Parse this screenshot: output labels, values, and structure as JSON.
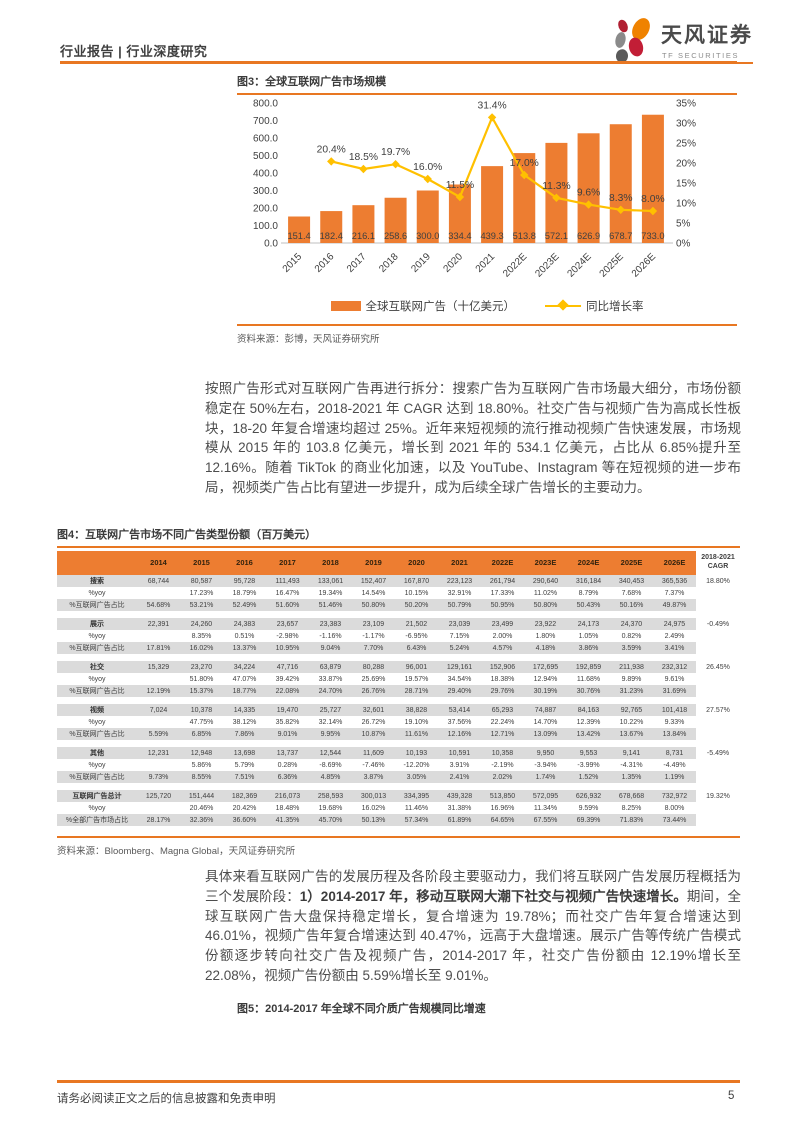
{
  "colors": {
    "accent": "#E87722",
    "bar": "#ED7D31",
    "line": "#FFC000",
    "table_header_bg": "#ED7D31",
    "row_shade": "#DBDBDB"
  },
  "header": {
    "breadcrumb": "行业报告 | 行业深度研究",
    "brand_cn": "天风证券",
    "brand_en": "TF SECURITIES"
  },
  "figure3": {
    "caption": "图3：全球互联网广告市场规模",
    "source": "资料来源：彭博，天风证券研究所"
  },
  "chart_data": {
    "type": "bar+line",
    "title": "全球互联网广告市场规模",
    "categories": [
      "2015",
      "2016",
      "2017",
      "2018",
      "2019",
      "2020",
      "2021",
      "2022E",
      "2023E",
      "2024E",
      "2025E",
      "2026E"
    ],
    "series": [
      {
        "name": "全球互联网广告（十亿美元）",
        "type": "bar",
        "axis": "left",
        "color": "#ED7D31",
        "values": [
          151.4,
          182.4,
          216.1,
          258.6,
          300.0,
          334.4,
          439.3,
          513.8,
          572.1,
          626.9,
          678.7,
          733.0
        ]
      },
      {
        "name": "同比增长率",
        "type": "line",
        "axis": "right",
        "color": "#FFC000",
        "values": [
          null,
          20.4,
          18.5,
          19.7,
          16.0,
          11.5,
          31.4,
          17.0,
          11.3,
          9.6,
          8.3,
          8.0
        ]
      }
    ],
    "left_axis": {
      "min": 0,
      "max": 800,
      "step": 100,
      "labels": [
        "0.0",
        "100.0",
        "200.0",
        "300.0",
        "400.0",
        "500.0",
        "600.0",
        "700.0",
        "800.0"
      ]
    },
    "right_axis": {
      "min": 0,
      "max": 35,
      "step": 5,
      "labels": [
        "0%",
        "5%",
        "10%",
        "15%",
        "20%",
        "25%",
        "30%",
        "35%"
      ]
    },
    "grid": false,
    "legend_position": "bottom"
  },
  "paragraph1": "按照广告形式对互联网广告再进行拆分：搜索广告为互联网广告市场最大细分，市场份额稳定在 50%左右，2018-2021 年 CAGR 达到 18.80%。社交广告与视频广告为高成长性板块，18-20 年复合增速均超过 25%。近年来短视频的流行推动视频广告快速发展，市场规模从 2015 年的 103.8 亿美元，增长到 2021 年的 534.1 亿美元，占比从 6.85%提升至 12.16%。随着 TikTok 的商业化加速，以及 YouTube、Instagram 等在短视频的进一步布局，视频类广告占比有望进一步提升，成为后续全球广告增长的主要动力。",
  "figure4": {
    "caption": "图4：互联网广告市场不同广告类型份额（百万美元）",
    "source": "资料来源：Bloomberg、Magna Global，天风证券研究所",
    "table": {
      "columns": [
        "",
        "2014",
        "2015",
        "2016",
        "2017",
        "2018",
        "2019",
        "2020",
        "2021",
        "2022E",
        "2023E",
        "2024E",
        "2025E",
        "2026E",
        "2018-2021 CAGR"
      ],
      "yoy_label": "%yoy",
      "groups": [
        {
          "name": "搜索",
          "cagr": "18.80%",
          "values": [
            "68,744",
            "80,587",
            "95,728",
            "111,493",
            "133,061",
            "152,407",
            "167,870",
            "223,123",
            "261,794",
            "290,640",
            "316,184",
            "340,453",
            "365,536"
          ],
          "yoy": [
            "",
            "17.23%",
            "18.79%",
            "16.47%",
            "19.34%",
            "14.54%",
            "10.15%",
            "32.91%",
            "17.33%",
            "11.02%",
            "8.79%",
            "7.68%",
            "7.37%"
          ],
          "share_label": "%互联网广告占比",
          "share": [
            "54.68%",
            "53.21%",
            "52.49%",
            "51.60%",
            "51.46%",
            "50.80%",
            "50.20%",
            "50.79%",
            "50.95%",
            "50.80%",
            "50.43%",
            "50.16%",
            "49.87%"
          ]
        },
        {
          "name": "展示",
          "cagr": "-0.49%",
          "values": [
            "22,391",
            "24,260",
            "24,383",
            "23,657",
            "23,383",
            "23,109",
            "21,502",
            "23,039",
            "23,499",
            "23,922",
            "24,173",
            "24,370",
            "24,975"
          ],
          "yoy": [
            "",
            "8.35%",
            "0.51%",
            "-2.98%",
            "-1.16%",
            "-1.17%",
            "-6.95%",
            "7.15%",
            "2.00%",
            "1.80%",
            "1.05%",
            "0.82%",
            "2.49%"
          ],
          "share_label": "%互联网广告占比",
          "share": [
            "17.81%",
            "16.02%",
            "13.37%",
            "10.95%",
            "9.04%",
            "7.70%",
            "6.43%",
            "5.24%",
            "4.57%",
            "4.18%",
            "3.86%",
            "3.59%",
            "3.41%"
          ]
        },
        {
          "name": "社交",
          "cagr": "26.45%",
          "values": [
            "15,329",
            "23,270",
            "34,224",
            "47,716",
            "63,879",
            "80,288",
            "96,001",
            "129,161",
            "152,906",
            "172,695",
            "192,859",
            "211,938",
            "232,312"
          ],
          "yoy": [
            "",
            "51.80%",
            "47.07%",
            "39.42%",
            "33.87%",
            "25.69%",
            "19.57%",
            "34.54%",
            "18.38%",
            "12.94%",
            "11.68%",
            "9.89%",
            "9.61%"
          ],
          "share_label": "%互联网广告占比",
          "share": [
            "12.19%",
            "15.37%",
            "18.77%",
            "22.08%",
            "24.70%",
            "26.76%",
            "28.71%",
            "29.40%",
            "29.76%",
            "30.19%",
            "30.76%",
            "31.23%",
            "31.69%"
          ]
        },
        {
          "name": "视频",
          "cagr": "27.57%",
          "values": [
            "7,024",
            "10,378",
            "14,335",
            "19,470",
            "25,727",
            "32,601",
            "38,828",
            "53,414",
            "65,293",
            "74,887",
            "84,163",
            "92,765",
            "101,418"
          ],
          "yoy": [
            "",
            "47.75%",
            "38.12%",
            "35.82%",
            "32.14%",
            "26.72%",
            "19.10%",
            "37.56%",
            "22.24%",
            "14.70%",
            "12.39%",
            "10.22%",
            "9.33%"
          ],
          "share_label": "%互联网广告占比",
          "share": [
            "5.59%",
            "6.85%",
            "7.86%",
            "9.01%",
            "9.95%",
            "10.87%",
            "11.61%",
            "12.16%",
            "12.71%",
            "13.09%",
            "13.42%",
            "13.67%",
            "13.84%"
          ]
        },
        {
          "name": "其他",
          "cagr": "-5.49%",
          "values": [
            "12,231",
            "12,948",
            "13,698",
            "13,737",
            "12,544",
            "11,609",
            "10,193",
            "10,591",
            "10,358",
            "9,950",
            "9,553",
            "9,141",
            "8,731"
          ],
          "yoy": [
            "",
            "5.86%",
            "5.79%",
            "0.28%",
            "-8.69%",
            "-7.46%",
            "-12.20%",
            "3.91%",
            "-2.19%",
            "-3.94%",
            "-3.99%",
            "-4.31%",
            "-4.49%"
          ],
          "share_label": "%互联网广告占比",
          "share": [
            "9.73%",
            "8.55%",
            "7.51%",
            "6.36%",
            "4.85%",
            "3.87%",
            "3.05%",
            "2.41%",
            "2.02%",
            "1.74%",
            "1.52%",
            "1.35%",
            "1.19%"
          ]
        },
        {
          "name": "互联网广告总计",
          "cagr": "19.32%",
          "values": [
            "125,720",
            "151,444",
            "182,369",
            "216,073",
            "258,593",
            "300,013",
            "334,395",
            "439,328",
            "513,850",
            "572,095",
            "626,932",
            "678,668",
            "732,972"
          ],
          "yoy": [
            "",
            "20.46%",
            "20.42%",
            "18.48%",
            "19.68%",
            "16.02%",
            "11.46%",
            "31.38%",
            "16.96%",
            "11.34%",
            "9.59%",
            "8.25%",
            "8.00%"
          ],
          "share_label": "%全部广告市场占比",
          "share": [
            "28.17%",
            "32.36%",
            "36.60%",
            "41.35%",
            "45.70%",
            "50.13%",
            "57.34%",
            "61.89%",
            "64.65%",
            "67.55%",
            "69.39%",
            "71.83%",
            "73.44%"
          ]
        }
      ]
    }
  },
  "paragraph2": {
    "lead": "具体来看互联网广告的发展历程及各阶段主要驱动力，我们将互联网广告发展历程概括为三个发展阶段：",
    "bold": "1）2014-2017 年，移动互联网大潮下社交与视频广告快速增长。",
    "rest": "期间，全球互联网广告大盘保持稳定增长，复合增速为 19.78%；而社交广告年复合增速达到 46.01%，视频广告年复合增速达到 40.47%，远高于大盘增速。展示广告等传统广告模式份额逐步转向社交广告及视频广告，2014-2017 年，社交广告份额由 12.19%增长至 22.08%，视频广告份额由 5.59%增长至 9.01%。"
  },
  "figure5": {
    "caption": "图5：2014-2017 年全球不同介质广告规模同比增速"
  },
  "footer": {
    "disclaimer": "请务必阅读正文之后的信息披露和免责申明",
    "page": "5"
  }
}
